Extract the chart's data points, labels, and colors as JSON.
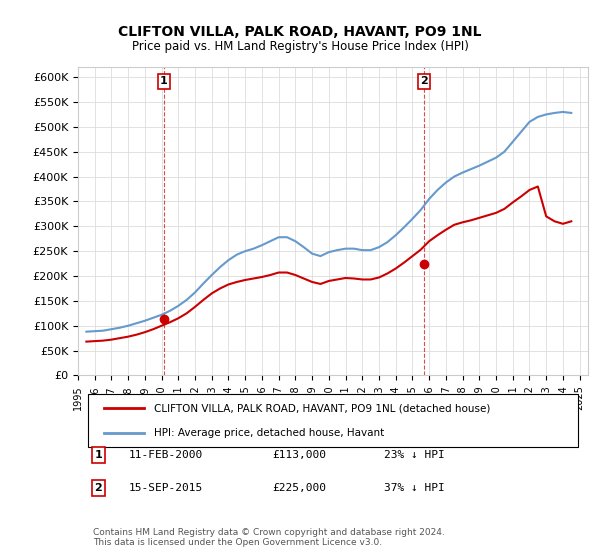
{
  "title": "CLIFTON VILLA, PALK ROAD, HAVANT, PO9 1NL",
  "subtitle": "Price paid vs. HM Land Registry's House Price Index (HPI)",
  "ylim": [
    0,
    620000
  ],
  "yticks": [
    0,
    50000,
    100000,
    150000,
    200000,
    250000,
    300000,
    350000,
    400000,
    450000,
    500000,
    550000,
    600000
  ],
  "ytick_labels": [
    "£0",
    "£50K",
    "£100K",
    "£150K",
    "£200K",
    "£250K",
    "£300K",
    "£350K",
    "£400K",
    "£450K",
    "£500K",
    "£550K",
    "£600K"
  ],
  "hpi_color": "#6699cc",
  "price_color": "#cc0000",
  "marker_color": "#cc0000",
  "annotation_box_color": "#cc0000",
  "transaction1": {
    "date": "2000-02-11",
    "price": 113000,
    "label": "1",
    "x": 2000.12
  },
  "transaction2": {
    "date": "2015-09-15",
    "price": 225000,
    "label": "2",
    "x": 2015.71
  },
  "legend_line1": "CLIFTON VILLA, PALK ROAD, HAVANT, PO9 1NL (detached house)",
  "legend_line2": "HPI: Average price, detached house, Havant",
  "table_row1": [
    "1",
    "11-FEB-2000",
    "£113,000",
    "23% ↓ HPI"
  ],
  "table_row2": [
    "2",
    "15-SEP-2015",
    "£225,000",
    "37% ↓ HPI"
  ],
  "footnote": "Contains HM Land Registry data © Crown copyright and database right 2024.\nThis data is licensed under the Open Government Licence v3.0.",
  "background_color": "#ffffff",
  "grid_color": "#dddddd",
  "hpi_data_x": [
    1995.5,
    1996.0,
    1996.5,
    1997.0,
    1997.5,
    1998.0,
    1998.5,
    1999.0,
    1999.5,
    2000.0,
    2000.5,
    2001.0,
    2001.5,
    2002.0,
    2002.5,
    2003.0,
    2003.5,
    2004.0,
    2004.5,
    2005.0,
    2005.5,
    2006.0,
    2006.5,
    2007.0,
    2007.5,
    2008.0,
    2008.5,
    2009.0,
    2009.5,
    2010.0,
    2010.5,
    2011.0,
    2011.5,
    2012.0,
    2012.5,
    2013.0,
    2013.5,
    2014.0,
    2014.5,
    2015.0,
    2015.5,
    2016.0,
    2016.5,
    2017.0,
    2017.5,
    2018.0,
    2018.5,
    2019.0,
    2019.5,
    2020.0,
    2020.5,
    2021.0,
    2021.5,
    2022.0,
    2022.5,
    2023.0,
    2023.5,
    2024.0,
    2024.5
  ],
  "hpi_data_y": [
    88000,
    89000,
    90000,
    93000,
    96000,
    100000,
    105000,
    110000,
    116000,
    122000,
    130000,
    140000,
    152000,
    167000,
    185000,
    202000,
    218000,
    232000,
    243000,
    250000,
    255000,
    262000,
    270000,
    278000,
    278000,
    270000,
    258000,
    245000,
    240000,
    248000,
    252000,
    255000,
    255000,
    252000,
    252000,
    258000,
    268000,
    282000,
    298000,
    315000,
    333000,
    355000,
    373000,
    388000,
    400000,
    408000,
    415000,
    422000,
    430000,
    438000,
    450000,
    470000,
    490000,
    510000,
    520000,
    525000,
    528000,
    530000,
    528000
  ],
  "price_data_x": [
    1995.5,
    1996.0,
    1996.5,
    1997.0,
    1997.5,
    1998.0,
    1998.5,
    1999.0,
    1999.5,
    2000.0,
    2000.5,
    2001.0,
    2001.5,
    2002.0,
    2002.5,
    2003.0,
    2003.5,
    2004.0,
    2004.5,
    2005.0,
    2005.5,
    2006.0,
    2006.5,
    2007.0,
    2007.5,
    2008.0,
    2008.5,
    2009.0,
    2009.5,
    2010.0,
    2010.5,
    2011.0,
    2011.5,
    2012.0,
    2012.5,
    2013.0,
    2013.5,
    2014.0,
    2014.5,
    2015.0,
    2015.5,
    2016.0,
    2016.5,
    2017.0,
    2017.5,
    2018.0,
    2018.5,
    2019.0,
    2019.5,
    2020.0,
    2020.5,
    2021.0,
    2021.5,
    2022.0,
    2022.5,
    2023.0,
    2023.5,
    2024.0,
    2024.5
  ],
  "price_data_y": [
    68000,
    69000,
    70000,
    72000,
    75000,
    78000,
    82000,
    87000,
    93000,
    100000,
    107000,
    115000,
    125000,
    138000,
    152000,
    165000,
    175000,
    183000,
    188000,
    192000,
    195000,
    198000,
    202000,
    207000,
    207000,
    202000,
    195000,
    188000,
    184000,
    190000,
    193000,
    196000,
    195000,
    193000,
    193000,
    197000,
    205000,
    215000,
    227000,
    240000,
    253000,
    270000,
    282000,
    293000,
    303000,
    308000,
    312000,
    317000,
    322000,
    327000,
    335000,
    348000,
    360000,
    373000,
    380000,
    320000,
    310000,
    305000,
    310000
  ],
  "xlim": [
    1995.0,
    2025.5
  ],
  "xtick_years": [
    1995,
    1996,
    1997,
    1998,
    1999,
    2000,
    2001,
    2002,
    2003,
    2004,
    2005,
    2006,
    2007,
    2008,
    2009,
    2010,
    2011,
    2012,
    2013,
    2014,
    2015,
    2016,
    2017,
    2018,
    2019,
    2020,
    2021,
    2022,
    2023,
    2024,
    2025
  ]
}
